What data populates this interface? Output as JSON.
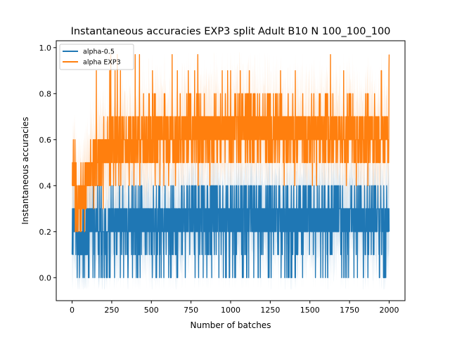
{
  "chart_data": {
    "type": "line",
    "title": "Instantaneous accuracies EXP3 split Adult B10 N 100_100_100",
    "xlabel": "Number of batches",
    "ylabel": "Instantaneous accuracies",
    "xlim": [
      -100,
      2100
    ],
    "ylim": [
      -0.1,
      1.03
    ],
    "x_ticks": [
      0,
      250,
      500,
      750,
      1000,
      1250,
      1500,
      1750,
      2000
    ],
    "y_ticks": [
      0.0,
      0.2,
      0.4,
      0.6,
      0.8,
      1.0
    ],
    "x_tick_labels": [
      "0",
      "250",
      "500",
      "750",
      "1000",
      "1250",
      "1500",
      "1750",
      "2000"
    ],
    "y_tick_labels": [
      "0.0",
      "0.2",
      "0.4",
      "0.6",
      "0.8",
      "1.0"
    ],
    "grid": false,
    "legend_placement": "top-left",
    "n_points": 2001,
    "series": [
      {
        "name": "alpha-0.5",
        "color": "#1f77b4",
        "trend": {
          "x": [
            0,
            50,
            100,
            150,
            200,
            300,
            400,
            500,
            600,
            700,
            800,
            900,
            1000,
            1200,
            1400,
            1600,
            1800,
            2000
          ],
          "mean": [
            0.25,
            0.16,
            0.21,
            0.22,
            0.23,
            0.24,
            0.25,
            0.24,
            0.25,
            0.25,
            0.27,
            0.27,
            0.28,
            0.27,
            0.27,
            0.27,
            0.27,
            0.26
          ]
        },
        "low": [
          0.0,
          0.1
        ],
        "high": [
          0.4,
          0.57
        ],
        "band_low": -0.05,
        "band_high": 0.63
      },
      {
        "name": "alpha EXP3",
        "color": "#ff7f0e",
        "trend": {
          "x": [
            0,
            50,
            100,
            150,
            200,
            300,
            400,
            500,
            600,
            700,
            800,
            900,
            1000,
            1200,
            1400,
            1600,
            1800,
            2000
          ],
          "mean": [
            0.45,
            0.33,
            0.43,
            0.5,
            0.54,
            0.57,
            0.59,
            0.6,
            0.61,
            0.62,
            0.63,
            0.64,
            0.64,
            0.64,
            0.63,
            0.63,
            0.62,
            0.6
          ]
        },
        "low": [
          0.1,
          0.33
        ],
        "high": [
          0.7,
          0.97
        ],
        "band_low": 0.2,
        "band_high": 0.98
      }
    ]
  }
}
